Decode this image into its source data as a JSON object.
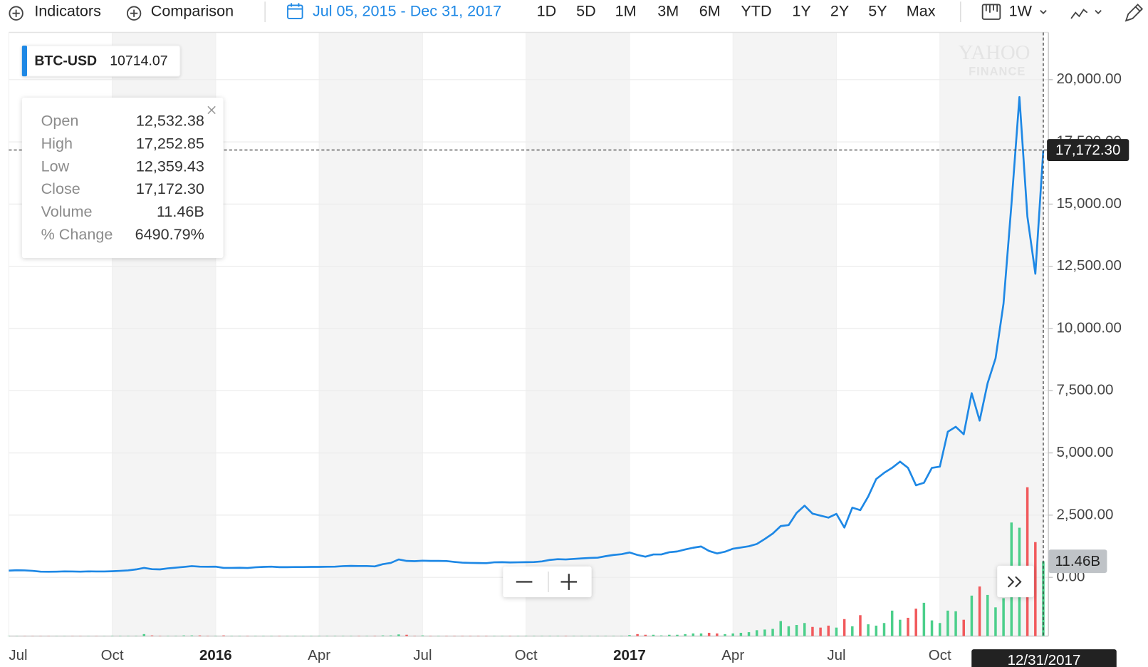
{
  "toolbar": {
    "indicators": "Indicators",
    "comparison": "Comparison",
    "date_range": "Jul 05, 2015 - Dec 31, 2017",
    "ranges": [
      "1D",
      "5D",
      "1M",
      "3M",
      "6M",
      "YTD",
      "1Y",
      "2Y",
      "5Y",
      "Max"
    ],
    "interval": "1W"
  },
  "watermark": [
    "YAHOO",
    "FINANCE"
  ],
  "legend_value": "10714.07",
  "tooltip": {
    "rows": [
      [
        "Open",
        "12,532.38"
      ],
      [
        "High",
        "17,252.85"
      ],
      [
        "Low",
        "12,359.43"
      ],
      [
        "Close",
        "17,172.30"
      ],
      [
        "Volume",
        "11.46B"
      ],
      [
        "% Change",
        "6490.79%"
      ]
    ]
  },
  "crosshair": {
    "price_label": "17,172.30",
    "volume_label": "11.46B"
  },
  "chart_data": {
    "type": "line",
    "categories": [
      "Jul",
      null,
      null,
      null,
      null,
      null,
      null,
      null,
      null,
      null,
      null,
      null,
      null,
      "Oct",
      null,
      null,
      null,
      null,
      null,
      null,
      null,
      null,
      null,
      null,
      null,
      null,
      "2016",
      null,
      null,
      null,
      null,
      null,
      null,
      null,
      null,
      null,
      null,
      null,
      null,
      "Apr",
      null,
      null,
      null,
      null,
      null,
      null,
      null,
      null,
      null,
      null,
      null,
      null,
      "Jul",
      null,
      null,
      null,
      null,
      null,
      null,
      null,
      null,
      null,
      null,
      null,
      null,
      "Oct",
      null,
      null,
      null,
      null,
      null,
      null,
      null,
      null,
      null,
      null,
      null,
      null,
      "2017",
      null,
      null,
      null,
      null,
      null,
      null,
      null,
      null,
      null,
      null,
      null,
      null,
      "Apr",
      null,
      null,
      null,
      null,
      null,
      null,
      null,
      null,
      null,
      null,
      null,
      null,
      "Jul",
      null,
      null,
      null,
      null,
      null,
      null,
      null,
      null,
      null,
      null,
      null,
      null,
      "Oct",
      null,
      null,
      null,
      null,
      null,
      null,
      null,
      null,
      null,
      null,
      null,
      null,
      "12/31/2017"
    ],
    "series": [
      {
        "name": "BTC-USD",
        "color": "#1e88e5",
        "values": [
          270,
          285,
          280,
          260,
          230,
          225,
          230,
          240,
          235,
          230,
          240,
          235,
          237,
          245,
          260,
          280,
          320,
          380,
          330,
          320,
          360,
          390,
          420,
          450,
          430,
          425,
          430,
          380,
          380,
          385,
          375,
          405,
          420,
          430,
          410,
          410,
          415,
          415,
          420,
          420,
          425,
          430,
          450,
          460,
          455,
          455,
          440,
          530,
          580,
          720,
          660,
          650,
          670,
          660,
          660,
          655,
          620,
          590,
          580,
          575,
          570,
          605,
          610,
          600,
          605,
          610,
          615,
          640,
          700,
          730,
          720,
          740,
          760,
          780,
          790,
          850,
          900,
          930,
          1000,
          900,
          830,
          920,
          920,
          1010,
          1040,
          1120,
          1190,
          1240,
          1060,
          960,
          1030,
          1150,
          1200,
          1250,
          1340,
          1540,
          1760,
          2060,
          2100,
          2590,
          2880,
          2560,
          2480,
          2400,
          2550,
          2000,
          2800,
          2700,
          3250,
          3950,
          4200,
          4400,
          4650,
          4400,
          3700,
          3800,
          4400,
          4450,
          5850,
          6050,
          5750,
          7400,
          6300,
          7800,
          8800,
          11000,
          15000,
          19300,
          14500,
          12200,
          17172.3
        ]
      },
      {
        "name": "Volume",
        "type": "bar",
        "axis": "y2",
        "up_color": "#4ccf8b",
        "down_color": "#f1595c",
        "values": [
          0.03,
          0.03,
          0.03,
          0.03,
          0.03,
          0.03,
          0.03,
          0.03,
          0.03,
          0.03,
          0.03,
          0.03,
          0.03,
          0.05,
          0.05,
          0.05,
          0.05,
          0.3,
          0.1,
          0.05,
          0.05,
          0.05,
          0.1,
          0.1,
          0.1,
          0.05,
          0.05,
          0.1,
          0.05,
          0.05,
          0.05,
          0.05,
          0.05,
          0.05,
          0.05,
          0.05,
          0.05,
          0.05,
          0.05,
          0.05,
          0.05,
          0.05,
          0.05,
          0.05,
          0.05,
          0.05,
          0.05,
          0.1,
          0.1,
          0.25,
          0.2,
          0.05,
          0.1,
          0.05,
          0.05,
          0.05,
          0.05,
          0.05,
          0.05,
          0.05,
          0.05,
          0.05,
          0.05,
          0.05,
          0.05,
          0.05,
          0.05,
          0.05,
          0.05,
          0.05,
          0.05,
          0.05,
          0.05,
          0.05,
          0.05,
          0.05,
          0.05,
          0.05,
          0.15,
          0.3,
          0.2,
          0.2,
          0.1,
          0.2,
          0.2,
          0.3,
          0.4,
          0.4,
          0.5,
          0.4,
          0.3,
          0.4,
          0.5,
          0.6,
          0.9,
          1.0,
          1.1,
          2.3,
          1.5,
          1.7,
          2.0,
          1.4,
          1.3,
          1.6,
          1.3,
          2.6,
          1.5,
          3.2,
          1.8,
          1.6,
          2.0,
          3.9,
          2.5,
          2.8,
          4.2,
          5.1,
          2.4,
          2.0,
          3.9,
          3.8,
          2.5,
          6.2,
          7.6,
          6.3,
          4.4,
          5.8,
          17.4,
          16.6,
          22.8,
          14.4,
          11.46
        ]
      }
    ],
    "ylim": [
      -2360,
      21900
    ],
    "yticks": [
      {
        "value": 0,
        "label": "0.00"
      },
      {
        "value": 2500,
        "label": "2,500.00"
      },
      {
        "value": 5000,
        "label": "5,000.00"
      },
      {
        "value": 7500,
        "label": "7,500.00"
      },
      {
        "value": 10000,
        "label": "10,000.00"
      },
      {
        "value": 12500,
        "label": "12,500.00"
      },
      {
        "value": 15000,
        "label": "15,000.00"
      },
      {
        "value": 17500,
        "label": "17,500.00"
      },
      {
        "value": 20000,
        "label": "20,000.00"
      }
    ],
    "y2lim": [
      0,
      92.5
    ],
    "grid": true
  }
}
